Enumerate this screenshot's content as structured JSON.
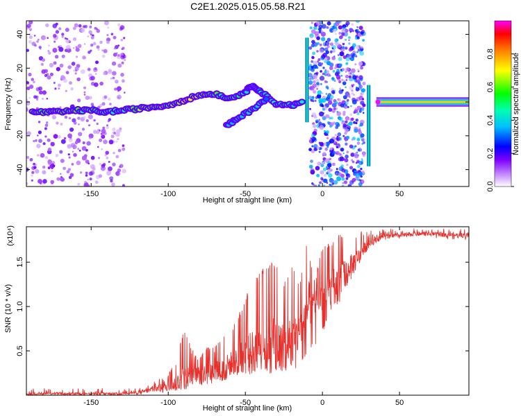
{
  "figure_title": "C2E1.2025.015.05.58.R21",
  "chart_data": [
    {
      "type": "heatmap",
      "title": "C2E1.2025.015.05.58.R21",
      "xlabel": "Height of straight line (km)",
      "ylabel": "Frequency (Hz)",
      "xlim": [
        -192,
        95
      ],
      "ylim": [
        -50,
        48
      ],
      "xticks": [
        -150,
        -100,
        -50,
        0,
        50
      ],
      "yticks": [
        -40,
        -20,
        0,
        20,
        40
      ],
      "grid": false,
      "colorbar": {
        "label": "Normalized spectral amplitude",
        "range": [
          0,
          1
        ],
        "ticks": [
          "0.0",
          "0.2",
          "0.4",
          "0.6",
          "0.8"
        ],
        "ticks_values": [
          0.0,
          0.2,
          0.4,
          0.6,
          0.8
        ],
        "colors": [
          "#ffffff",
          "#7f00ff",
          "#0000ff",
          "#00ffff",
          "#00ff00",
          "#ffff00",
          "#ff8000",
          "#ff0000",
          "#ff00ff"
        ]
      },
      "noise_regions": [
        {
          "x": [
            -192,
            -128
          ],
          "level": 0.15
        },
        {
          "x": [
            -8,
            27
          ],
          "level": 0.35
        }
      ],
      "ridge": [
        {
          "x": -188,
          "y": -6,
          "a": 0.55
        },
        {
          "x": -170,
          "y": -6,
          "a": 0.6
        },
        {
          "x": -160,
          "y": -5,
          "a": 0.55
        },
        {
          "x": -150,
          "y": -5,
          "a": 0.55
        },
        {
          "x": -140,
          "y": -6,
          "a": 0.45
        },
        {
          "x": -130,
          "y": -5,
          "a": 0.5
        },
        {
          "x": -120,
          "y": -4,
          "a": 0.6
        },
        {
          "x": -110,
          "y": -3,
          "a": 0.6
        },
        {
          "x": -100,
          "y": -2,
          "a": 0.6
        },
        {
          "x": -90,
          "y": 1,
          "a": 0.65
        },
        {
          "x": -80,
          "y": 4,
          "a": 0.65
        },
        {
          "x": -70,
          "y": 5,
          "a": 0.55
        },
        {
          "x": -60,
          "y": 2,
          "a": 0.5
        },
        {
          "x": -50,
          "y": 6,
          "a": 0.45
        },
        {
          "x": -45,
          "y": 10,
          "a": 0.4
        },
        {
          "x": -40,
          "y": 6,
          "a": 0.4
        },
        {
          "x": -30,
          "y": -1,
          "a": 0.4
        },
        {
          "x": -20,
          "y": -2,
          "a": 0.45
        },
        {
          "x": -12,
          "y": 0,
          "a": 0.4
        }
      ],
      "branches": [
        {
          "x": -62,
          "y": -14,
          "a": 0.4
        },
        {
          "x": -55,
          "y": -10,
          "a": 0.35
        },
        {
          "x": -45,
          "y": -4,
          "a": 0.4
        },
        {
          "x": -35,
          "y": 3,
          "a": 0.35
        }
      ],
      "steady_line": {
        "x": [
          35,
          95
        ],
        "y": 0,
        "a": 0.75,
        "peak_x": 36,
        "peak_a": 1.0
      },
      "spikes": [
        {
          "x": -10,
          "y": [
            -12,
            38
          ]
        },
        {
          "x": 30,
          "y": [
            -38,
            10
          ]
        }
      ]
    },
    {
      "type": "line",
      "xlabel": "Height of straight line (km)",
      "ylabel": "SNR (10 * v/v)",
      "y_multiplier": "(x10⁴)",
      "xlim": [
        -192,
        95
      ],
      "ylim": [
        0,
        1.9
      ],
      "xticks": [
        -150,
        -100,
        -50,
        0,
        50
      ],
      "yticks": [
        0.5,
        1.0,
        1.5
      ],
      "ytick_labels": [
        "0.5",
        "1.0",
        "1.5"
      ],
      "grid": false,
      "color": "#e8302c",
      "envelope": {
        "x": [
          -192,
          -170,
          -150,
          -130,
          -120,
          -110,
          -100,
          -95,
          -90,
          -85,
          -80,
          -75,
          -70,
          -65,
          -60,
          -55,
          -50,
          -45,
          -40,
          -35,
          -30,
          -25,
          -20,
          -15,
          -10,
          -5,
          0,
          5,
          10,
          15,
          20,
          25,
          30,
          35,
          40,
          50,
          60,
          70,
          80,
          95
        ],
        "base": [
          0.01,
          0.02,
          0.02,
          0.02,
          0.03,
          0.06,
          0.1,
          0.14,
          0.2,
          0.22,
          0.24,
          0.25,
          0.28,
          0.3,
          0.35,
          0.4,
          0.45,
          0.5,
          0.55,
          0.6,
          0.62,
          0.63,
          0.6,
          0.7,
          1.0,
          1.05,
          1.1,
          1.2,
          1.3,
          1.4,
          1.5,
          1.62,
          1.7,
          1.76,
          1.78,
          1.8,
          1.82,
          1.82,
          1.81,
          1.8
        ],
        "peak": [
          0.02,
          0.05,
          0.03,
          0.04,
          0.08,
          0.15,
          0.25,
          0.4,
          0.75,
          0.55,
          0.45,
          0.55,
          0.55,
          0.7,
          0.75,
          0.9,
          1.1,
          1.3,
          1.4,
          1.5,
          1.5,
          1.3,
          1.5,
          1.25,
          1.8,
          1.3,
          1.7,
          1.75,
          1.82,
          1.8,
          1.82,
          1.85,
          1.85,
          1.87,
          1.88,
          1.88,
          1.88,
          1.87,
          1.88,
          1.87
        ],
        "dips": [
          0.0,
          0.0,
          0.0,
          0.0,
          0.0,
          0.02,
          0.03,
          0.05,
          0.05,
          0.08,
          0.1,
          0.1,
          0.12,
          0.15,
          0.15,
          0.2,
          0.2,
          0.25,
          0.28,
          0.2,
          0.25,
          0.25,
          0.3,
          0.3,
          0.4,
          0.55,
          0.7,
          0.9,
          1.0,
          1.2,
          1.35,
          1.5,
          1.65,
          1.72,
          1.74,
          1.76,
          1.76,
          1.76,
          1.76,
          1.75
        ]
      }
    }
  ]
}
